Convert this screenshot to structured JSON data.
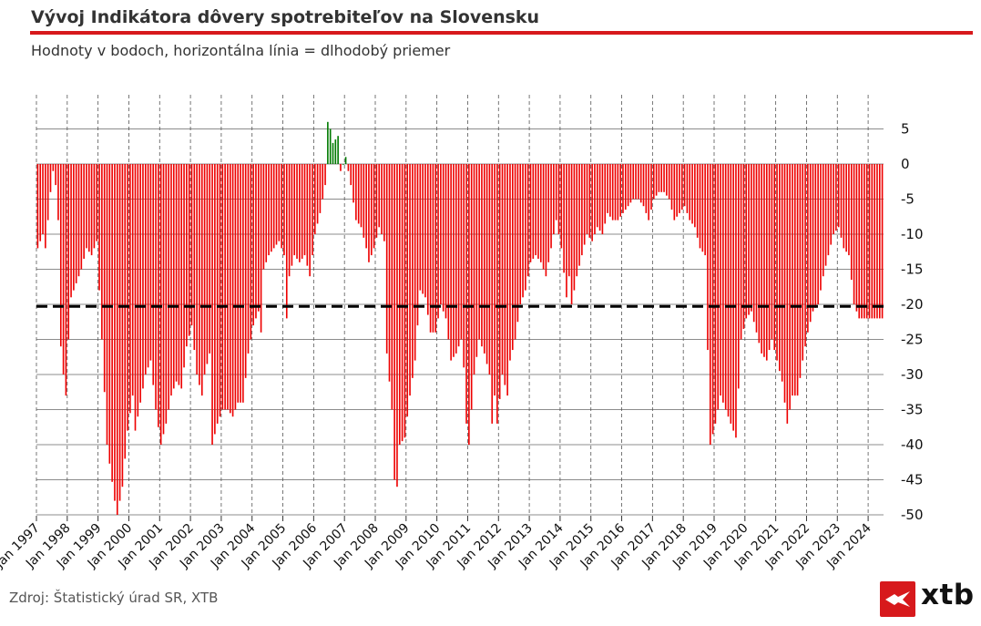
{
  "header": {
    "title": "Vývoj Indikátora dôvery spotrebiteľov na Slovensku",
    "subtitle": "Hodnoty v bodoch, horizontálna línia = dlhodobý priemer"
  },
  "footer": {
    "source": "Zdroj: Štatistický úrad SR, XTB",
    "logo_text": "xtb"
  },
  "colors": {
    "accent": "#d7191c",
    "negative": "#ee0000",
    "positive": "#007a00",
    "average_line": "#000000",
    "grid": "#666666",
    "text": "#333333"
  },
  "chart_data": {
    "type": "bar",
    "title": "Vývoj Indikátora dôvery spotrebiteľov na Slovensku",
    "xlabel": "",
    "ylabel": "",
    "ylim": [
      -50,
      5
    ],
    "y_ticks": [
      5,
      0,
      -5,
      -10,
      -15,
      -20,
      -25,
      -30,
      -35,
      -40,
      -45,
      -50
    ],
    "y_axis_side": "right",
    "long_term_average": -20.3,
    "start": "Jan 1997",
    "x_tick_labels": [
      "Jan 1997",
      "Jan 1998",
      "Jan 1999",
      "Jan 2000",
      "Jan 2001",
      "Jan 2002",
      "Jan 2003",
      "Jan 2004",
      "Jan 2005",
      "Jan 2006",
      "Jan 2007",
      "Jan 2008",
      "Jan 2009",
      "Jan 2010",
      "Jan 2011",
      "Jan 2012",
      "Jan 2013",
      "Jan 2014",
      "Jan 2015",
      "Jan 2016",
      "Jan 2017",
      "Jan 2018",
      "Jan 2019",
      "Jan 2020",
      "Jan 2021",
      "Jan 2022",
      "Jan 2023",
      "Jan 2024"
    ],
    "keypoints": [
      [
        0,
        -12
      ],
      [
        2,
        -10
      ],
      [
        3,
        -12
      ],
      [
        5,
        -4
      ],
      [
        6,
        -1
      ],
      [
        7,
        -3
      ],
      [
        8,
        -8
      ],
      [
        9,
        -26
      ],
      [
        10,
        -30
      ],
      [
        11,
        -33
      ],
      [
        12,
        -25
      ],
      [
        13,
        -19
      ],
      [
        15,
        -17
      ],
      [
        17,
        -15
      ],
      [
        19,
        -12
      ],
      [
        21,
        -13
      ],
      [
        23,
        -11
      ],
      [
        25,
        -25
      ],
      [
        27,
        -40
      ],
      [
        30,
        -48
      ],
      [
        31,
        -50
      ],
      [
        33,
        -46
      ],
      [
        35,
        -38
      ],
      [
        37,
        -33
      ],
      [
        38,
        -38
      ],
      [
        40,
        -34
      ],
      [
        42,
        -30
      ],
      [
        44,
        -28
      ],
      [
        46,
        -35
      ],
      [
        48,
        -40
      ],
      [
        50,
        -37
      ],
      [
        52,
        -33
      ],
      [
        54,
        -31
      ],
      [
        56,
        -32
      ],
      [
        58,
        -26
      ],
      [
        60,
        -23
      ],
      [
        62,
        -30
      ],
      [
        64,
        -33
      ],
      [
        65,
        -30
      ],
      [
        67,
        -27
      ],
      [
        68,
        -40
      ],
      [
        70,
        -37
      ],
      [
        72,
        -35
      ],
      [
        74,
        -35
      ],
      [
        76,
        -36
      ],
      [
        78,
        -34
      ],
      [
        80,
        -34
      ],
      [
        82,
        -27
      ],
      [
        84,
        -23
      ],
      [
        86,
        -21
      ],
      [
        87,
        -24
      ],
      [
        88,
        -15
      ],
      [
        90,
        -13
      ],
      [
        92,
        -12
      ],
      [
        94,
        -11
      ],
      [
        96,
        -13
      ],
      [
        97,
        -22
      ],
      [
        98,
        -16
      ],
      [
        100,
        -13
      ],
      [
        102,
        -14
      ],
      [
        104,
        -13
      ],
      [
        106,
        -16
      ],
      [
        108,
        -10
      ],
      [
        110,
        -7
      ],
      [
        112,
        -3
      ],
      [
        113,
        6
      ],
      [
        114,
        5
      ],
      [
        115,
        3
      ],
      [
        117,
        4
      ],
      [
        118,
        -1
      ],
      [
        120,
        1
      ],
      [
        121,
        -1
      ],
      [
        122,
        -3
      ],
      [
        124,
        -8
      ],
      [
        126,
        -9
      ],
      [
        128,
        -12
      ],
      [
        129,
        -14
      ],
      [
        131,
        -12
      ],
      [
        133,
        -9
      ],
      [
        135,
        -11
      ],
      [
        136,
        -27
      ],
      [
        138,
        -35
      ],
      [
        139,
        -45
      ],
      [
        140,
        -46
      ],
      [
        141,
        -40
      ],
      [
        143,
        -39
      ],
      [
        145,
        -33
      ],
      [
        147,
        -28
      ],
      [
        149,
        -18
      ],
      [
        151,
        -19
      ],
      [
        153,
        -24
      ],
      [
        155,
        -24
      ],
      [
        157,
        -20
      ],
      [
        159,
        -22
      ],
      [
        161,
        -28
      ],
      [
        163,
        -27
      ],
      [
        165,
        -25
      ],
      [
        166,
        -29
      ],
      [
        167,
        -37
      ],
      [
        168,
        -40
      ],
      [
        170,
        -30
      ],
      [
        172,
        -25
      ],
      [
        174,
        -27
      ],
      [
        176,
        -30
      ],
      [
        177,
        -37
      ],
      [
        178,
        -33
      ],
      [
        179,
        -37
      ],
      [
        181,
        -30
      ],
      [
        183,
        -33
      ],
      [
        184,
        -28
      ],
      [
        186,
        -25
      ],
      [
        188,
        -20
      ],
      [
        190,
        -18
      ],
      [
        192,
        -14
      ],
      [
        194,
        -13
      ],
      [
        196,
        -14
      ],
      [
        198,
        -16
      ],
      [
        200,
        -12
      ],
      [
        202,
        -8
      ],
      [
        204,
        -12
      ],
      [
        206,
        -19
      ],
      [
        207,
        -16
      ],
      [
        208,
        -20
      ],
      [
        210,
        -16
      ],
      [
        212,
        -13
      ],
      [
        214,
        -10
      ],
      [
        216,
        -11
      ],
      [
        218,
        -9
      ],
      [
        220,
        -10
      ],
      [
        222,
        -7
      ],
      [
        224,
        -8
      ],
      [
        226,
        -8
      ],
      [
        228,
        -7
      ],
      [
        230,
        -6
      ],
      [
        232,
        -5
      ],
      [
        234,
        -5
      ],
      [
        236,
        -6
      ],
      [
        238,
        -8
      ],
      [
        240,
        -5
      ],
      [
        242,
        -4
      ],
      [
        244,
        -4
      ],
      [
        246,
        -5
      ],
      [
        248,
        -8
      ],
      [
        250,
        -7
      ],
      [
        252,
        -6
      ],
      [
        254,
        -8
      ],
      [
        256,
        -9
      ],
      [
        258,
        -12
      ],
      [
        260,
        -13
      ],
      [
        262,
        -40
      ],
      [
        264,
        -37
      ],
      [
        266,
        -33
      ],
      [
        268,
        -35
      ],
      [
        270,
        -37
      ],
      [
        272,
        -39
      ],
      [
        274,
        -25
      ],
      [
        276,
        -22
      ],
      [
        278,
        -21
      ],
      [
        280,
        -24
      ],
      [
        282,
        -27
      ],
      [
        284,
        -28
      ],
      [
        286,
        -25
      ],
      [
        288,
        -28
      ],
      [
        290,
        -31
      ],
      [
        292,
        -37
      ],
      [
        294,
        -33
      ],
      [
        296,
        -33
      ],
      [
        298,
        -28
      ],
      [
        300,
        -24
      ],
      [
        302,
        -21
      ],
      [
        304,
        -20
      ],
      [
        306,
        -16
      ],
      [
        308,
        -13
      ],
      [
        310,
        -10
      ],
      [
        312,
        -9
      ],
      [
        314,
        -12
      ],
      [
        316,
        -13
      ],
      [
        318,
        -20
      ],
      [
        320,
        -22
      ]
    ]
  }
}
